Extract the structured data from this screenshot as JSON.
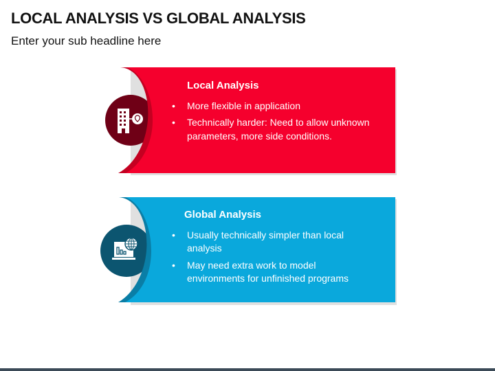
{
  "title": "LOCAL ANALYSIS VS GLOBAL ANALYSIS",
  "subtitle": "Enter your sub headline here",
  "colors": {
    "local": "#f5002d",
    "local_dark": "#c40021",
    "local_circle": "#6f0016",
    "global": "#0aa8dc",
    "global_dark": "#0a7ea6",
    "global_circle": "#0c5570"
  },
  "cards": [
    {
      "heading": "Local Analysis",
      "icon": "building-location-icon",
      "bullets": [
        "More flexible in application",
        "Technically harder: Need to allow unknown parameters, more side conditions."
      ]
    },
    {
      "heading": "Global Analysis",
      "icon": "laptop-globe-chart-icon",
      "bullets": [
        "Usually technically simpler than local analysis",
        "May need extra work to model environments for unfinished programs"
      ]
    }
  ]
}
